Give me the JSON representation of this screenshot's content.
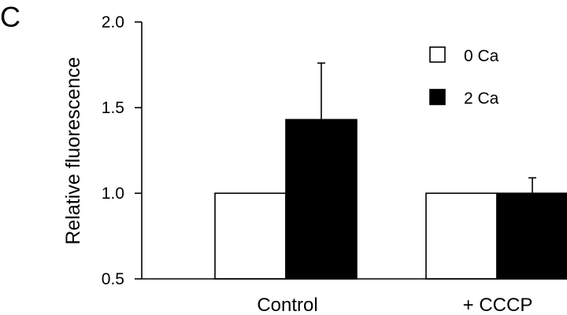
{
  "panel_label": "C",
  "chart_data": {
    "type": "bar",
    "title": "",
    "xlabel": "",
    "ylabel": "Relative fluorescence",
    "ylim": [
      0.5,
      2.0
    ],
    "yticks": [
      0.5,
      1.0,
      1.5,
      2.0
    ],
    "ytick_labels": [
      "0.5",
      "1.0",
      "1.5",
      "2.0"
    ],
    "categories": [
      "Control",
      "+ CCCP"
    ],
    "series": [
      {
        "name": "0 Ca",
        "values": [
          1.0,
          1.0
        ],
        "errors": [
          0,
          0
        ],
        "color": "#ffffff"
      },
      {
        "name": "2 Ca",
        "values": [
          1.43,
          1.0
        ],
        "errors": [
          0.33,
          0.09
        ],
        "color": "#000000"
      }
    ],
    "legend_position": "top-right",
    "grid": false
  }
}
